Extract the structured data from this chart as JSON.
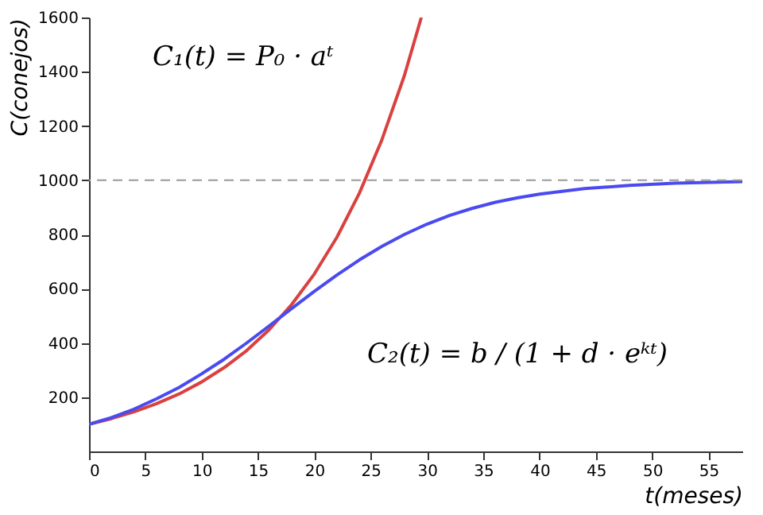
{
  "chart_data": {
    "type": "line",
    "xlabel": "t(meses)",
    "ylabel": "C(conejos)",
    "xlim": [
      0,
      58
    ],
    "ylim": [
      0,
      1600
    ],
    "xticks": [
      0,
      5,
      10,
      15,
      20,
      25,
      30,
      35,
      40,
      45,
      50,
      55
    ],
    "yticks": [
      200,
      400,
      600,
      800,
      {
        "value": 1000,
        "label": "1000"
      },
      {
        "value": 1200,
        "label": "1200"
      },
      {
        "value": 1400,
        "label": "1400"
      },
      {
        "value": 1600,
        "label": "1600"
      }
    ],
    "grid": false,
    "marker": "none",
    "line_style": "solid",
    "series": [
      {
        "color": "#d9413f",
        "x": [
          0,
          2,
          4,
          6,
          8,
          10,
          12,
          14,
          16,
          18,
          20,
          22,
          24,
          26,
          28,
          29.5
        ],
        "values": [
          100,
          121,
          146,
          176,
          212,
          256,
          309,
          372,
          449,
          542,
          654,
          789,
          952,
          1149,
          1386,
          1600
        ]
      },
      {
        "color": "#4a4af0",
        "x": [
          0,
          2,
          4,
          6,
          8,
          10,
          12,
          14,
          16,
          18,
          20,
          22,
          24,
          26,
          28,
          30,
          32,
          34,
          36,
          38,
          40,
          44,
          48,
          52,
          58
        ],
        "values": [
          100,
          125,
          156,
          194,
          236,
          286,
          340,
          400,
          463,
          527,
          590,
          650,
          706,
          756,
          800,
          838,
          870,
          896,
          918,
          935,
          949,
          969,
          981,
          989,
          995
        ]
      }
    ],
    "ref_lines": [
      {
        "axis": "y",
        "value": 1000,
        "color": "#999999",
        "line_style": "dashed"
      }
    ],
    "annotations": [
      "C₁(t) = P₀ · aᵗ",
      "C₂(t) = b / (1 + d · eᵏᵗ)"
    ]
  }
}
